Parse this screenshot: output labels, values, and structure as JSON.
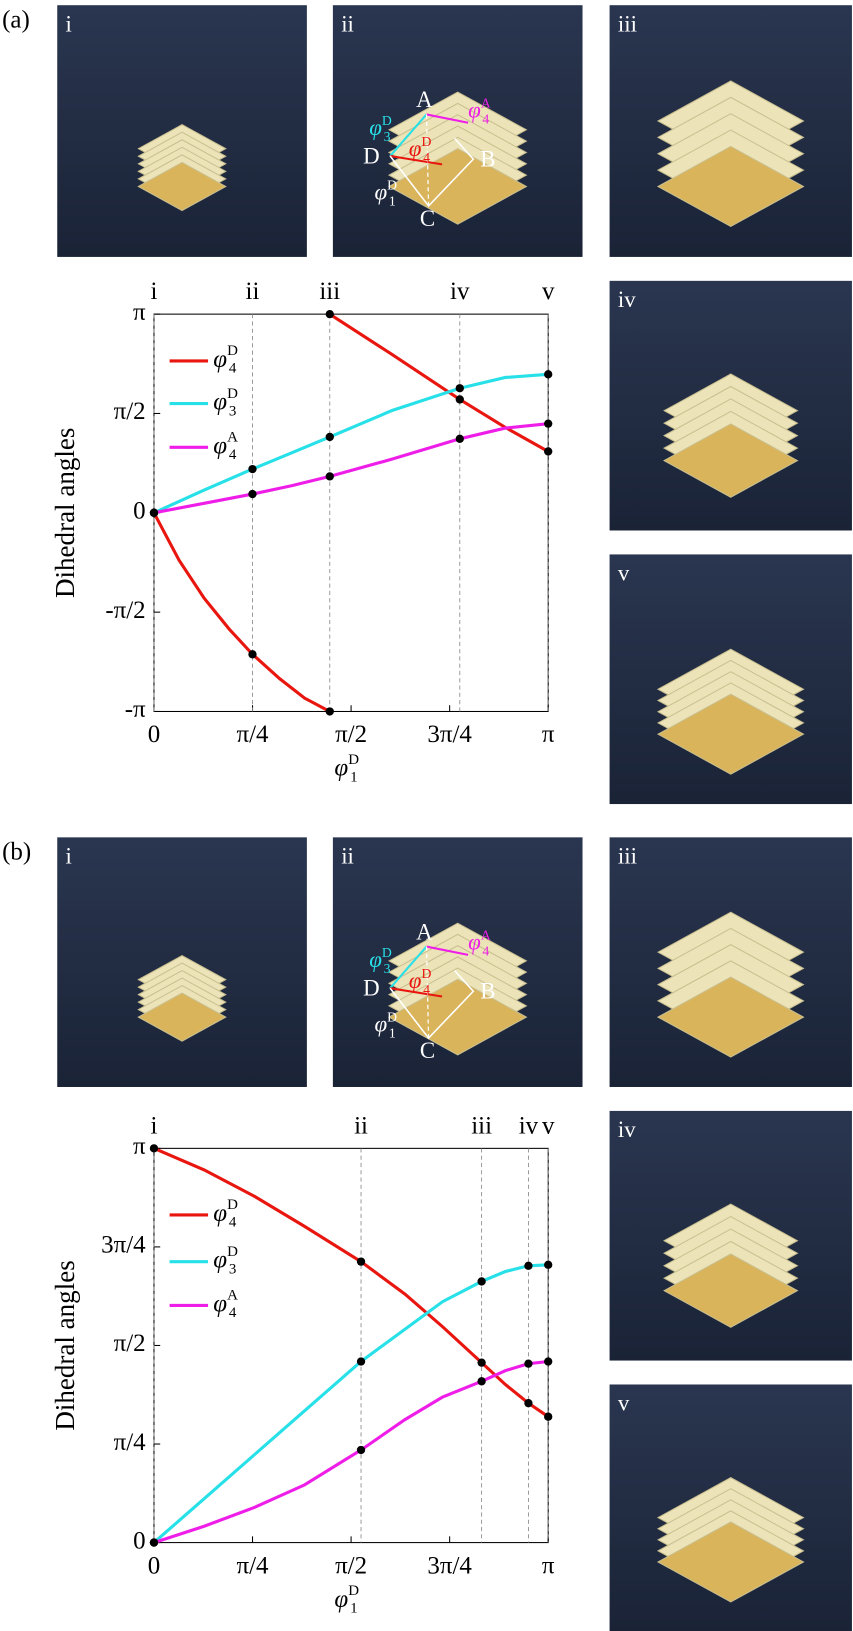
{
  "chart_data": [
    {
      "type": "line",
      "y_label": "Dihedral angles",
      "x_label": {
        "symbol": "φ",
        "sup": "D",
        "sub": "1"
      },
      "xlim": [
        0,
        3.1416
      ],
      "ylim": [
        -3.1416,
        3.1416
      ],
      "xticks": [
        0,
        {
          "value": 0.7854,
          "label": "π/4"
        },
        {
          "value": 1.5708,
          "label": "π/2"
        },
        {
          "value": 2.3562,
          "label": "3π/4"
        },
        {
          "value": 3.1416,
          "label": "π"
        }
      ],
      "yticks": [
        {
          "value": -3.1416,
          "label": "-π"
        },
        {
          "value": -1.5708,
          "label": "-π/2"
        },
        0,
        {
          "value": 1.5708,
          "label": "π/2"
        },
        {
          "value": 3.1416,
          "label": "π"
        }
      ],
      "stages": {
        "labels": [
          "i",
          "ii",
          "iii",
          "iv",
          "v"
        ],
        "x": [
          0,
          0.785,
          1.401,
          2.437,
          3.1416
        ]
      },
      "series": [
        {
          "name": {
            "symbol": "φ",
            "sup": "D",
            "sub": "4"
          },
          "color": "#e8160f",
          "x": [
            0,
            0.2,
            0.4,
            0.6,
            0.785,
            1.0,
            1.2,
            1.401,
            1.401,
            1.401,
            1.9,
            2.437,
            2.8,
            3.1416
          ],
          "values": [
            0,
            -0.75,
            -1.35,
            -1.84,
            -2.237,
            -2.62,
            -2.93,
            -3.1416,
            null,
            3.1416,
            2.5,
            1.793,
            1.35,
            0.97
          ]
        },
        {
          "name": {
            "symbol": "φ",
            "sup": "D",
            "sub": "3"
          },
          "color": "#27e0e8",
          "x": [
            0,
            0.4,
            0.785,
            1.1,
            1.401,
            1.9,
            2.437,
            2.8,
            3.1416
          ],
          "values": [
            0,
            0.36,
            0.691,
            0.95,
            1.2,
            1.62,
            1.97,
            2.14,
            2.19
          ]
        },
        {
          "name": {
            "symbol": "φ",
            "sup": "A",
            "sub": "4"
          },
          "color": "#ee1ee8",
          "x": [
            0,
            0.4,
            0.785,
            1.1,
            1.401,
            1.9,
            2.437,
            2.8,
            3.1416
          ],
          "values": [
            0,
            0.15,
            0.296,
            0.43,
            0.576,
            0.85,
            1.17,
            1.34,
            1.41
          ]
        }
      ]
    },
    {
      "type": "line",
      "y_label": "Dihedral angles",
      "x_label": {
        "symbol": "φ",
        "sup": "D",
        "sub": "1"
      },
      "xlim": [
        0,
        3.1416
      ],
      "ylim": [
        0,
        3.1416
      ],
      "xticks": [
        0,
        {
          "value": 0.7854,
          "label": "π/4"
        },
        {
          "value": 1.5708,
          "label": "π/2"
        },
        {
          "value": 2.3562,
          "label": "3π/4"
        },
        {
          "value": 3.1416,
          "label": "π"
        }
      ],
      "yticks": [
        0,
        {
          "value": 0.7854,
          "label": "π/4"
        },
        {
          "value": 1.5708,
          "label": "π/2"
        },
        {
          "value": 2.3562,
          "label": "3π/4"
        },
        {
          "value": 3.1416,
          "label": "π"
        }
      ],
      "stages": {
        "labels": [
          "i",
          "ii",
          "iii",
          "iv",
          "v"
        ],
        "x": [
          0,
          1.65,
          2.611,
          2.984,
          3.1416
        ]
      },
      "series": [
        {
          "name": {
            "symbol": "φ",
            "sup": "D",
            "sub": "4"
          },
          "color": "#e8160f",
          "x": [
            0,
            0.4,
            0.8,
            1.2,
            1.65,
            2.0,
            2.3,
            2.611,
            2.8,
            2.984,
            3.1416
          ],
          "values": [
            3.1416,
            2.97,
            2.76,
            2.52,
            2.239,
            1.98,
            1.72,
            1.434,
            1.26,
            1.111,
            1.003
          ]
        },
        {
          "name": {
            "symbol": "φ",
            "sup": "D",
            "sub": "3"
          },
          "color": "#27e0e8",
          "x": [
            0,
            0.4,
            0.8,
            1.2,
            1.65,
            2.0,
            2.3,
            2.611,
            2.8,
            2.984,
            3.1416
          ],
          "values": [
            0,
            0.35,
            0.7,
            1.05,
            1.443,
            1.7,
            1.92,
            2.081,
            2.16,
            2.206,
            2.214
          ]
        },
        {
          "name": {
            "symbol": "φ",
            "sup": "A",
            "sub": "4"
          },
          "color": "#ee1ee8",
          "x": [
            0,
            0.4,
            0.8,
            1.2,
            1.65,
            2.0,
            2.3,
            2.611,
            2.8,
            2.984,
            3.1416
          ],
          "values": [
            0,
            0.13,
            0.28,
            0.46,
            0.738,
            0.98,
            1.16,
            1.285,
            1.37,
            1.426,
            1.443
          ]
        }
      ]
    }
  ],
  "panels": [
    {
      "label": "(a)",
      "photos": [
        "i",
        "ii",
        "iii",
        "iv",
        "v"
      ],
      "points": [
        "A",
        "B",
        "C",
        "D"
      ],
      "angles": [
        {
          "symbol": "φ",
          "sup": "D",
          "sub": "3"
        },
        {
          "symbol": "φ",
          "sup": "D",
          "sub": "4"
        },
        {
          "symbol": "φ",
          "sup": "D",
          "sub": "1"
        },
        {
          "symbol": "φ",
          "sup": "A",
          "sub": "4"
        }
      ]
    },
    {
      "label": "(b)",
      "photos": [
        "i",
        "ii",
        "iii",
        "iv",
        "v"
      ],
      "points": [
        "A",
        "B",
        "C",
        "D"
      ],
      "angles": [
        {
          "symbol": "φ",
          "sup": "D",
          "sub": "3"
        },
        {
          "symbol": "φ",
          "sup": "D",
          "sub": "4"
        },
        {
          "symbol": "φ",
          "sup": "D",
          "sub": "1"
        },
        {
          "symbol": "φ",
          "sup": "A",
          "sub": "4"
        }
      ]
    }
  ]
}
